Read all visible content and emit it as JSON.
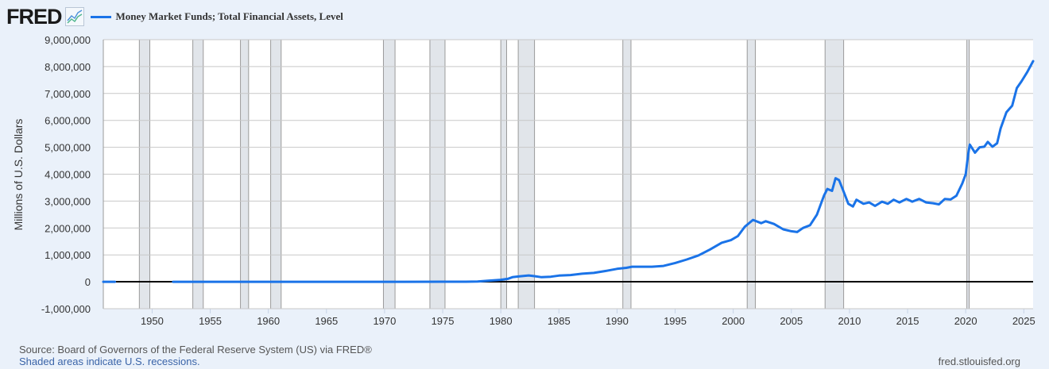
{
  "header": {
    "logo": "FRED",
    "logo_icon": "line-chart-icon",
    "legend": {
      "label": "Money Market Funds; Total Financial Assets, Level",
      "color": "#1a73e8"
    }
  },
  "footer": {
    "source": "Source: Board of Governors of the Federal Reserve System (US) via FRED®",
    "recession_note": "Shaded areas indicate U.S. recessions.",
    "site": "fred.stlouisfed.org"
  },
  "colors": {
    "background": "#eaf1fa",
    "plot_background": "#ffffff",
    "gridline": "#c8c8c8",
    "recession_fill": "#e1e5ea",
    "recession_edge": "#9a9a9a",
    "zero_line": "#000000",
    "series": "#1a73e8"
  },
  "chart_data": {
    "type": "line",
    "title": "Money Market Funds; Total Financial Assets, Level",
    "xlabel": "",
    "ylabel": "Millions of U.S. Dollars",
    "xlim": [
      1945.8,
      2025.8
    ],
    "ylim": [
      -1000000,
      9000000
    ],
    "grid": true,
    "legend_position": "top-left",
    "y_ticks": [
      {
        "value": 9000000,
        "label": "9,000,000"
      },
      {
        "value": 8000000,
        "label": "8,000,000"
      },
      {
        "value": 7000000,
        "label": "7,000,000"
      },
      {
        "value": 6000000,
        "label": "6,000,000"
      },
      {
        "value": 5000000,
        "label": "5,000,000"
      },
      {
        "value": 4000000,
        "label": "4,000,000"
      },
      {
        "value": 3000000,
        "label": "3,000,000"
      },
      {
        "value": 2000000,
        "label": "2,000,000"
      },
      {
        "value": 1000000,
        "label": "1,000,000"
      },
      {
        "value": 0,
        "label": "0"
      },
      {
        "value": -1000000,
        "label": "-1,000,000"
      }
    ],
    "x_ticks": [
      "1950",
      "1955",
      "1960",
      "1965",
      "1970",
      "1975",
      "1980",
      "1985",
      "1990",
      "1995",
      "2000",
      "2005",
      "2010",
      "2015",
      "2020",
      "2025"
    ],
    "recessions": [
      [
        1948.9,
        1949.8
      ],
      [
        1953.5,
        1954.4
      ],
      [
        1957.6,
        1958.3
      ],
      [
        1960.2,
        1961.1
      ],
      [
        1969.9,
        1970.9
      ],
      [
        1973.9,
        1975.2
      ],
      [
        1980.0,
        1980.5
      ],
      [
        1981.5,
        1982.9
      ],
      [
        1990.5,
        1991.2
      ],
      [
        2001.2,
        2001.9
      ],
      [
        2007.9,
        2009.5
      ],
      [
        2020.1,
        2020.3
      ]
    ],
    "series": [
      {
        "name": "Money Market Funds; Total Financial Assets, Level",
        "segments": [
          [
            [
              1945.8,
              0
            ],
            [
              1946.8,
              0
            ]
          ],
          [
            [
              1951.8,
              0
            ],
            [
              1960,
              0
            ],
            [
              1970,
              0
            ],
            [
              1975,
              2000
            ],
            [
              1976,
              3000
            ],
            [
              1977,
              4000
            ],
            [
              1978,
              10000
            ],
            [
              1979,
              45000
            ],
            [
              1980,
              75000
            ],
            [
              1980.6,
              110000
            ],
            [
              1981,
              170000
            ],
            [
              1981.6,
              200000
            ],
            [
              1982.4,
              235000
            ],
            [
              1982.9,
              210000
            ],
            [
              1983.5,
              170000
            ],
            [
              1984.3,
              190000
            ],
            [
              1985,
              230000
            ],
            [
              1986,
              250000
            ],
            [
              1987,
              300000
            ],
            [
              1988,
              330000
            ],
            [
              1989,
              400000
            ],
            [
              1990,
              480000
            ],
            [
              1990.8,
              520000
            ],
            [
              1991.3,
              560000
            ],
            [
              1992,
              560000
            ],
            [
              1993,
              560000
            ],
            [
              1994,
              590000
            ],
            [
              1995,
              700000
            ],
            [
              1996,
              830000
            ],
            [
              1997,
              980000
            ],
            [
              1998,
              1200000
            ],
            [
              1999,
              1450000
            ],
            [
              1999.8,
              1550000
            ],
            [
              2000.4,
              1700000
            ],
            [
              2001,
              2050000
            ],
            [
              2001.7,
              2300000
            ],
            [
              2002.4,
              2180000
            ],
            [
              2002.8,
              2250000
            ],
            [
              2003.5,
              2150000
            ],
            [
              2004.3,
              1950000
            ],
            [
              2005,
              1880000
            ],
            [
              2005.5,
              1850000
            ],
            [
              2006,
              2000000
            ],
            [
              2006.6,
              2100000
            ],
            [
              2007.2,
              2500000
            ],
            [
              2007.8,
              3200000
            ],
            [
              2008.1,
              3450000
            ],
            [
              2008.5,
              3380000
            ],
            [
              2008.8,
              3850000
            ],
            [
              2009.1,
              3780000
            ],
            [
              2009.5,
              3350000
            ],
            [
              2009.9,
              2900000
            ],
            [
              2010.3,
              2800000
            ],
            [
              2010.6,
              3050000
            ],
            [
              2011.2,
              2900000
            ],
            [
              2011.7,
              2950000
            ],
            [
              2012.2,
              2820000
            ],
            [
              2012.8,
              2980000
            ],
            [
              2013.3,
              2900000
            ],
            [
              2013.8,
              3050000
            ],
            [
              2014.3,
              2950000
            ],
            [
              2014.9,
              3080000
            ],
            [
              2015.4,
              2980000
            ],
            [
              2016,
              3080000
            ],
            [
              2016.6,
              2950000
            ],
            [
              2017.2,
              2920000
            ],
            [
              2017.7,
              2880000
            ],
            [
              2018.2,
              3080000
            ],
            [
              2018.7,
              3060000
            ],
            [
              2019.2,
              3200000
            ],
            [
              2019.7,
              3650000
            ],
            [
              2020,
              4000000
            ],
            [
              2020.2,
              4700000
            ],
            [
              2020.35,
              5100000
            ],
            [
              2020.8,
              4800000
            ],
            [
              2021.2,
              5000000
            ],
            [
              2021.6,
              5020000
            ],
            [
              2021.9,
              5200000
            ],
            [
              2022.3,
              5020000
            ],
            [
              2022.7,
              5150000
            ],
            [
              2023,
              5700000
            ],
            [
              2023.5,
              6300000
            ],
            [
              2024,
              6550000
            ],
            [
              2024.4,
              7200000
            ],
            [
              2024.8,
              7450000
            ],
            [
              2025.3,
              7800000
            ],
            [
              2025.8,
              8200000
            ]
          ]
        ]
      }
    ]
  }
}
